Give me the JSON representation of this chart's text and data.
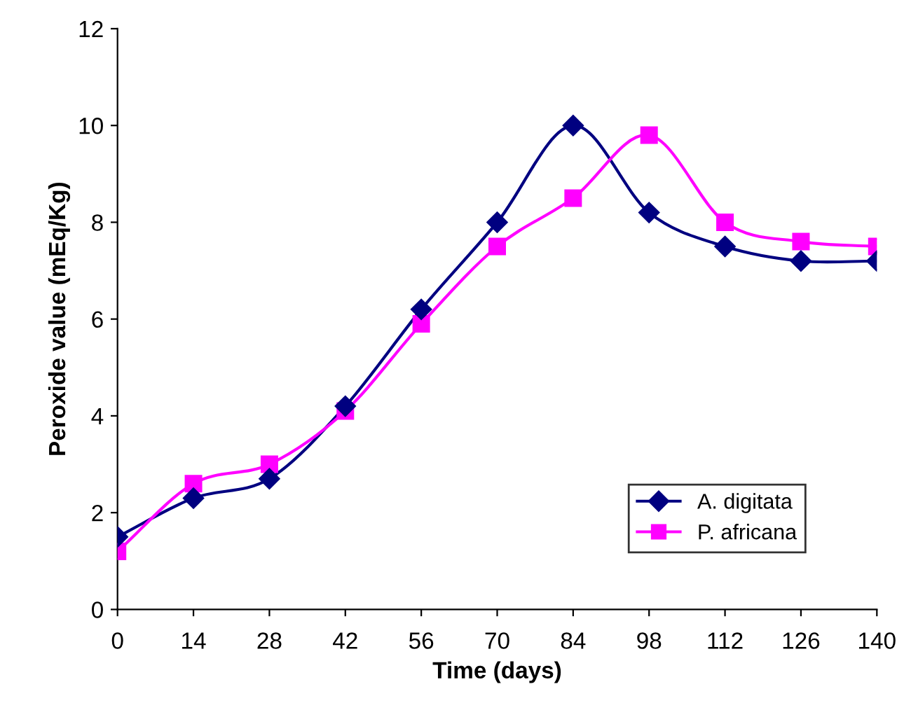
{
  "chart_data": {
    "type": "line",
    "xlabel": "Time (days)",
    "ylabel": "Peroxide value (mEq/Kg)",
    "x": [
      0,
      14,
      28,
      42,
      56,
      70,
      84,
      98,
      112,
      126,
      140
    ],
    "series": [
      {
        "name": "A. digitata",
        "color": "#000080",
        "marker": "diamond",
        "values": [
          1.5,
          2.3,
          2.7,
          4.2,
          6.2,
          8.0,
          10.0,
          8.2,
          7.5,
          7.2,
          7.2
        ]
      },
      {
        "name": "P. africana",
        "color": "#ff00ff",
        "marker": "square",
        "values": [
          1.2,
          2.6,
          3.0,
          4.1,
          5.9,
          7.5,
          8.5,
          9.8,
          8.0,
          7.6,
          7.5
        ]
      }
    ],
    "xlim": [
      0,
      140
    ],
    "xticks": [
      0,
      14,
      28,
      42,
      56,
      70,
      84,
      98,
      112,
      126,
      140
    ],
    "ylim": [
      0,
      12
    ],
    "yticks": [
      0,
      2,
      4,
      6,
      8,
      10,
      12
    ],
    "legend": "bottom right",
    "grid": false,
    "line_style": "solid"
  }
}
